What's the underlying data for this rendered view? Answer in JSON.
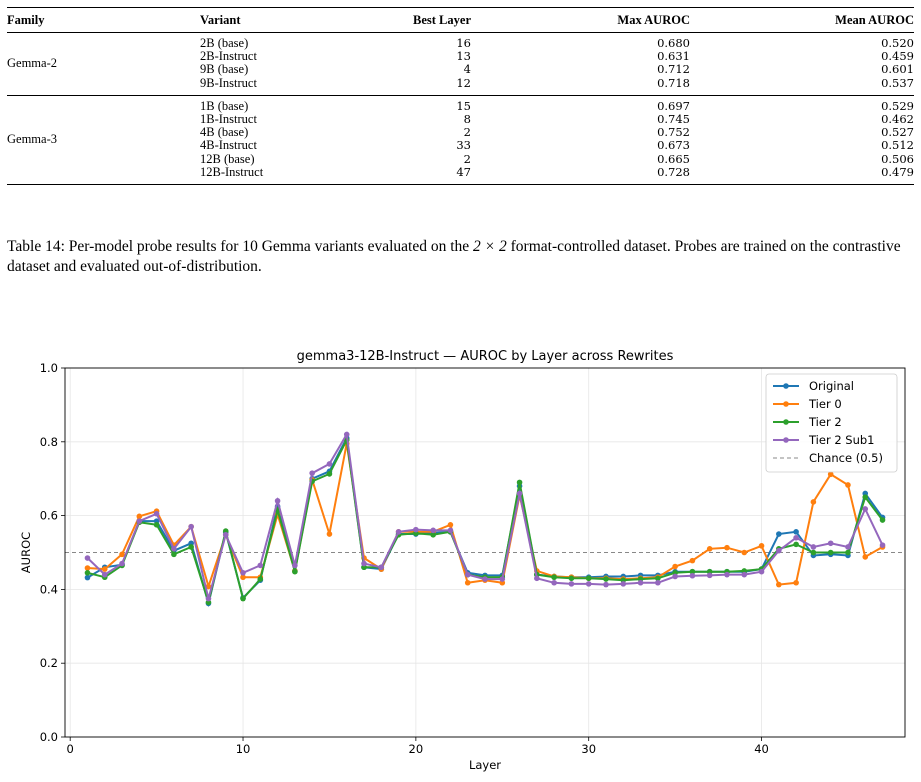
{
  "table": {
    "headers": [
      "Family",
      "Variant",
      "Best Layer",
      "Max AUROC",
      "Mean AUROC"
    ],
    "groups": [
      {
        "family": "Gemma-2",
        "rows": [
          {
            "variant": "2B (base)",
            "best_layer": "16",
            "max_auroc": "0.680",
            "mean_auroc": "0.520"
          },
          {
            "variant": "2B-Instruct",
            "best_layer": "13",
            "max_auroc": "0.631",
            "mean_auroc": "0.459"
          },
          {
            "variant": "9B (base)",
            "best_layer": "4",
            "max_auroc": "0.712",
            "mean_auroc": "0.601"
          },
          {
            "variant": "9B-Instruct",
            "best_layer": "12",
            "max_auroc": "0.718",
            "mean_auroc": "0.537"
          }
        ]
      },
      {
        "family": "Gemma-3",
        "rows": [
          {
            "variant": "1B (base)",
            "best_layer": "15",
            "max_auroc": "0.697",
            "mean_auroc": "0.529"
          },
          {
            "variant": "1B-Instruct",
            "best_layer": "8",
            "max_auroc": "0.745",
            "mean_auroc": "0.462"
          },
          {
            "variant": "4B (base)",
            "best_layer": "2",
            "max_auroc": "0.752",
            "mean_auroc": "0.527"
          },
          {
            "variant": "4B-Instruct",
            "best_layer": "33",
            "max_auroc": "0.673",
            "mean_auroc": "0.512"
          },
          {
            "variant": "12B (base)",
            "best_layer": "2",
            "max_auroc": "0.665",
            "mean_auroc": "0.506"
          },
          {
            "variant": "12B-Instruct",
            "best_layer": "47",
            "max_auroc": "0.728",
            "mean_auroc": "0.479"
          }
        ]
      }
    ]
  },
  "caption": {
    "prefix": "Table 14: Per-model probe results for 10 Gemma variants evaluated on the ",
    "math": "2 × 2",
    "suffix": " format-controlled dataset. Probes are trained on the contrastive dataset and evaluated out-of-distribution."
  },
  "chart_data": {
    "type": "line",
    "title": "gemma3-12B-Instruct — AUROC by Layer across Rewrites",
    "xlabel": "Layer",
    "ylabel": "AUROC",
    "xlim": [
      -0.3,
      48.3
    ],
    "ylim": [
      0.0,
      1.0
    ],
    "xticks": [
      0,
      10,
      20,
      30,
      40
    ],
    "yticks": [
      0.0,
      0.2,
      0.4,
      0.6,
      0.8,
      1.0
    ],
    "ytick_labels": [
      "0.0",
      "0.2",
      "0.4",
      "0.6",
      "0.8",
      "1.0"
    ],
    "grid": true,
    "legend_position": "top-right",
    "x": [
      1,
      2,
      3,
      4,
      5,
      6,
      7,
      8,
      9,
      10,
      11,
      12,
      13,
      14,
      15,
      16,
      17,
      18,
      19,
      20,
      21,
      22,
      23,
      24,
      25,
      26,
      27,
      28,
      29,
      30,
      31,
      32,
      33,
      34,
      35,
      36,
      37,
      38,
      39,
      40,
      41,
      42,
      43,
      44,
      45,
      46,
      47
    ],
    "series": [
      {
        "name": "Original",
        "color": "#1f77b4",
        "values": [
          0.432,
          0.46,
          0.467,
          0.585,
          0.585,
          0.505,
          0.525,
          0.362,
          0.555,
          0.377,
          0.425,
          0.625,
          0.45,
          0.7,
          0.72,
          0.81,
          0.46,
          0.455,
          0.55,
          0.55,
          0.553,
          0.556,
          0.445,
          0.438,
          0.438,
          0.68,
          0.44,
          0.435,
          0.433,
          0.433,
          0.435,
          0.435,
          0.438,
          0.438,
          0.448,
          0.448,
          0.448,
          0.448,
          0.448,
          0.455,
          0.55,
          0.556,
          0.492,
          0.495,
          0.492,
          0.66,
          0.595
        ]
      },
      {
        "name": "Tier 0",
        "color": "#ff7f0e",
        "values": [
          0.458,
          0.455,
          0.495,
          0.598,
          0.612,
          0.52,
          0.57,
          0.408,
          0.548,
          0.433,
          0.433,
          0.603,
          0.45,
          0.697,
          0.55,
          0.795,
          0.485,
          0.455,
          0.556,
          0.556,
          0.556,
          0.575,
          0.418,
          0.425,
          0.418,
          0.655,
          0.45,
          0.435,
          0.433,
          0.43,
          0.43,
          0.428,
          0.43,
          0.433,
          0.462,
          0.478,
          0.51,
          0.513,
          0.5,
          0.518,
          0.413,
          0.418,
          0.637,
          0.712,
          0.683,
          0.488,
          0.515
        ]
      },
      {
        "name": "Tier 2",
        "color": "#2ca02c",
        "values": [
          0.445,
          0.433,
          0.465,
          0.582,
          0.575,
          0.495,
          0.515,
          0.365,
          0.558,
          0.375,
          0.428,
          0.615,
          0.448,
          0.693,
          0.713,
          0.805,
          0.46,
          0.46,
          0.548,
          0.552,
          0.548,
          0.556,
          0.44,
          0.433,
          0.433,
          0.69,
          0.44,
          0.433,
          0.43,
          0.43,
          0.428,
          0.425,
          0.428,
          0.43,
          0.445,
          0.448,
          0.448,
          0.448,
          0.45,
          0.455,
          0.51,
          0.522,
          0.5,
          0.5,
          0.5,
          0.65,
          0.588
        ]
      },
      {
        "name": "Tier 2 Sub1",
        "color": "#9467bd",
        "values": [
          0.485,
          0.44,
          0.47,
          0.585,
          0.605,
          0.51,
          0.57,
          0.375,
          0.548,
          0.445,
          0.465,
          0.64,
          0.465,
          0.715,
          0.74,
          0.82,
          0.47,
          0.46,
          0.556,
          0.562,
          0.56,
          0.56,
          0.44,
          0.428,
          0.428,
          0.66,
          0.43,
          0.418,
          0.415,
          0.415,
          0.413,
          0.415,
          0.418,
          0.418,
          0.435,
          0.437,
          0.438,
          0.44,
          0.44,
          0.448,
          0.505,
          0.54,
          0.515,
          0.525,
          0.515,
          0.618,
          0.52
        ]
      }
    ],
    "reference_line": {
      "name": "Chance (0.5)",
      "y": 0.5,
      "color": "#888888"
    }
  }
}
